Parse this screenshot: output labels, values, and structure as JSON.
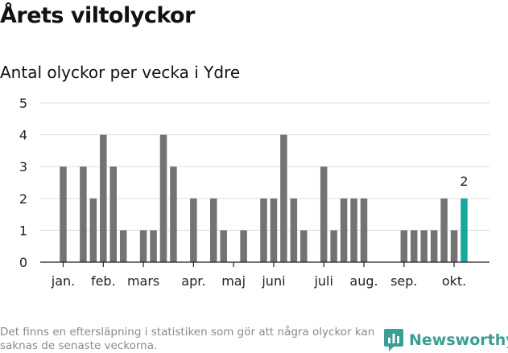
{
  "chart_data": {
    "type": "bar",
    "title": "Årets viltolyckor",
    "subtitle": "Antal olyckor per vecka i Ydre",
    "xlabel": "",
    "ylabel": "",
    "ylim": [
      0,
      5
    ],
    "yticks": [
      0,
      1,
      2,
      3,
      4,
      5
    ],
    "grid": true,
    "weeks": [
      1,
      2,
      3,
      4,
      5,
      6,
      7,
      8,
      9,
      10,
      11,
      12,
      13,
      14,
      15,
      16,
      17,
      18,
      19,
      20,
      21,
      22,
      23,
      24,
      25,
      26,
      27,
      28,
      29,
      30,
      31,
      32,
      33,
      34,
      35,
      36,
      37,
      38,
      39,
      40,
      41
    ],
    "values": [
      3,
      0,
      3,
      2,
      4,
      3,
      1,
      0,
      1,
      1,
      4,
      3,
      0,
      2,
      0,
      2,
      1,
      0,
      1,
      0,
      2,
      2,
      4,
      2,
      1,
      0,
      3,
      1,
      2,
      2,
      2,
      0,
      0,
      0,
      1,
      1,
      1,
      1,
      2,
      1,
      2
    ],
    "month_labels": [
      "jan.",
      "feb.",
      "mars",
      "apr.",
      "maj",
      "juni",
      "juli",
      "aug.",
      "sep.",
      "okt."
    ],
    "month_label_weeks": [
      1,
      5,
      9,
      14,
      18,
      22,
      27,
      31,
      35,
      40
    ],
    "highlight_week": 41,
    "highlight_label": "2"
  },
  "colors": {
    "bar": "#737373",
    "highlight": "#16a89a",
    "grid": "#dddddd",
    "axis": "#222222",
    "brand": "#3a9e92"
  },
  "footnote": "Det finns en eftersläpning i statistiken som gör att några olyckor kan saknas de senaste veckorna.",
  "brand": {
    "name": "Newsworthy",
    "icon": "newsworthy-logo-icon"
  }
}
